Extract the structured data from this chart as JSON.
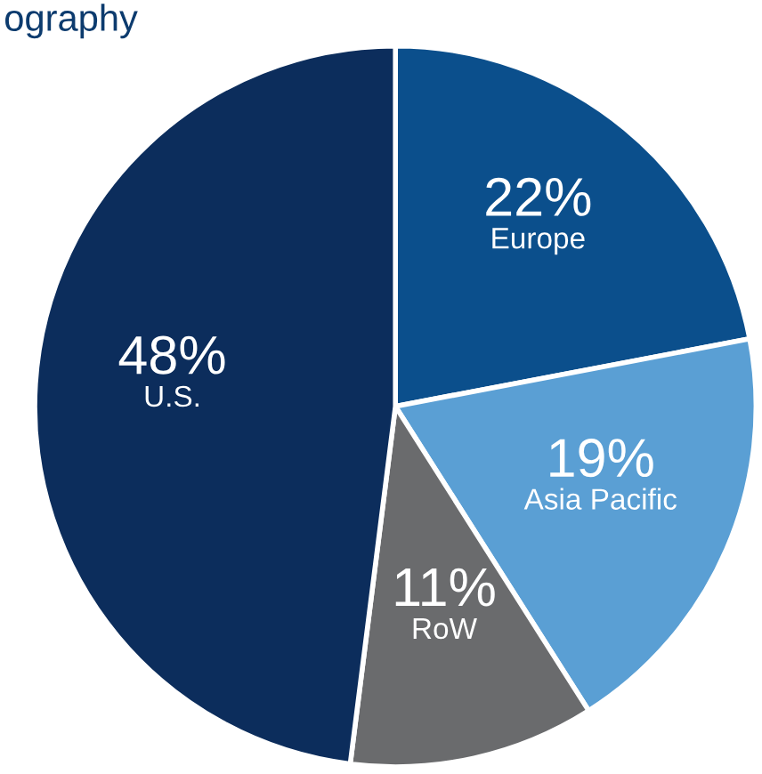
{
  "chart_data": {
    "type": "pie",
    "title": "ography",
    "categories": [
      "Europe",
      "Asia Pacific",
      "RoW",
      "U.S."
    ],
    "values": [
      22,
      19,
      11,
      48
    ],
    "value_labels": [
      "22%",
      "19%",
      "11%",
      "48%"
    ],
    "colors": [
      "#0b4f8c",
      "#5a9fd4",
      "#6a6b6d",
      "#0c2d5c"
    ]
  }
}
